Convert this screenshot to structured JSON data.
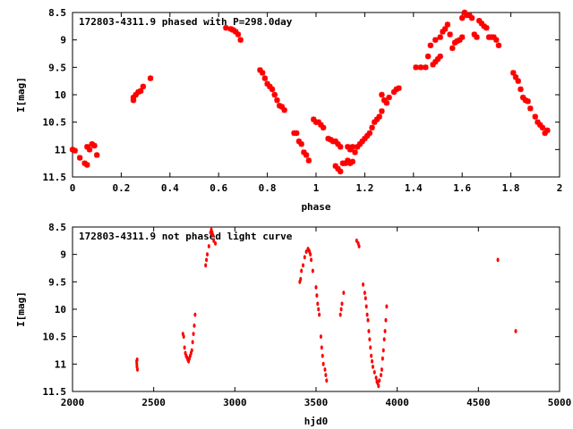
{
  "chart_data": [
    {
      "type": "scatter",
      "title": "172803-4311.9 phased with P=298.0day",
      "xlabel": "phase",
      "ylabel": "I[mag]",
      "xlim": [
        0,
        2
      ],
      "ylim": [
        11.5,
        8.5
      ],
      "xticks": [
        "0",
        "0.2",
        "0.4",
        "0.6",
        "0.8",
        "1",
        "1.2",
        "1.4",
        "1.6",
        "1.8",
        "2"
      ],
      "yticks": [
        "8.5",
        "9",
        "9.5",
        "10",
        "10.5",
        "11",
        "11.5"
      ],
      "marker_color": "#ff0000",
      "marker": "star",
      "series": [
        {
          "points": [
            [
              0.0,
              11.0
            ],
            [
              0.01,
              11.02
            ],
            [
              0.03,
              11.15
            ],
            [
              0.05,
              11.25
            ],
            [
              0.06,
              11.28
            ],
            [
              0.06,
              10.95
            ],
            [
              0.07,
              11.0
            ],
            [
              0.08,
              10.9
            ],
            [
              0.09,
              10.93
            ],
            [
              0.1,
              11.1
            ],
            [
              0.25,
              10.1
            ],
            [
              0.25,
              10.05
            ],
            [
              0.26,
              10.0
            ],
            [
              0.27,
              9.95
            ],
            [
              0.28,
              9.93
            ],
            [
              0.29,
              9.85
            ],
            [
              0.32,
              9.7
            ],
            [
              0.63,
              8.78
            ],
            [
              0.65,
              8.8
            ],
            [
              0.66,
              8.82
            ],
            [
              0.67,
              8.85
            ],
            [
              0.68,
              8.9
            ],
            [
              0.69,
              9.0
            ],
            [
              0.77,
              9.55
            ],
            [
              0.78,
              9.6
            ],
            [
              0.79,
              9.7
            ],
            [
              0.8,
              9.8
            ],
            [
              0.81,
              9.85
            ],
            [
              0.82,
              9.9
            ],
            [
              0.83,
              10.0
            ],
            [
              0.84,
              10.1
            ],
            [
              0.85,
              10.2
            ],
            [
              0.86,
              10.22
            ],
            [
              0.87,
              10.28
            ],
            [
              0.91,
              10.7
            ],
            [
              0.92,
              10.7
            ],
            [
              0.93,
              10.85
            ],
            [
              0.94,
              10.9
            ],
            [
              0.95,
              11.05
            ],
            [
              0.96,
              11.1
            ],
            [
              0.97,
              11.2
            ],
            [
              0.99,
              10.45
            ],
            [
              1.0,
              10.5
            ],
            [
              1.01,
              10.5
            ],
            [
              1.02,
              10.55
            ],
            [
              1.03,
              10.6
            ],
            [
              1.05,
              10.8
            ],
            [
              1.06,
              10.82
            ],
            [
              1.07,
              10.85
            ],
            [
              1.08,
              10.85
            ],
            [
              1.09,
              10.9
            ],
            [
              1.1,
              10.95
            ],
            [
              1.08,
              11.3
            ],
            [
              1.09,
              11.35
            ],
            [
              1.1,
              11.4
            ],
            [
              1.11,
              11.25
            ],
            [
              1.12,
              11.25
            ],
            [
              1.13,
              11.2
            ],
            [
              1.14,
              11.25
            ],
            [
              1.15,
              11.22
            ],
            [
              1.13,
              10.95
            ],
            [
              1.14,
              11.0
            ],
            [
              1.15,
              10.95
            ],
            [
              1.16,
              11.05
            ],
            [
              1.17,
              10.95
            ],
            [
              1.18,
              10.9
            ],
            [
              1.19,
              10.85
            ],
            [
              1.2,
              10.8
            ],
            [
              1.21,
              10.75
            ],
            [
              1.22,
              10.7
            ],
            [
              1.23,
              10.6
            ],
            [
              1.24,
              10.5
            ],
            [
              1.25,
              10.45
            ],
            [
              1.26,
              10.4
            ],
            [
              1.27,
              10.3
            ],
            [
              1.27,
              10.0
            ],
            [
              1.28,
              10.1
            ],
            [
              1.29,
              10.15
            ],
            [
              1.3,
              10.05
            ],
            [
              1.32,
              9.95
            ],
            [
              1.33,
              9.9
            ],
            [
              1.34,
              9.88
            ],
            [
              1.41,
              9.5
            ],
            [
              1.43,
              9.5
            ],
            [
              1.45,
              9.5
            ],
            [
              1.46,
              9.3
            ],
            [
              1.47,
              9.1
            ],
            [
              1.48,
              9.45
            ],
            [
              1.49,
              9.4
            ],
            [
              1.5,
              9.35
            ],
            [
              1.51,
              9.3
            ],
            [
              1.49,
              9.0
            ],
            [
              1.51,
              8.95
            ],
            [
              1.52,
              8.85
            ],
            [
              1.53,
              8.8
            ],
            [
              1.54,
              8.72
            ],
            [
              1.55,
              8.9
            ],
            [
              1.56,
              9.15
            ],
            [
              1.57,
              9.05
            ],
            [
              1.58,
              9.02
            ],
            [
              1.59,
              9.0
            ],
            [
              1.6,
              8.95
            ],
            [
              1.6,
              8.6
            ],
            [
              1.61,
              8.5
            ],
            [
              1.62,
              8.55
            ],
            [
              1.63,
              8.55
            ],
            [
              1.64,
              8.6
            ],
            [
              1.65,
              8.9
            ],
            [
              1.66,
              8.95
            ],
            [
              1.67,
              8.65
            ],
            [
              1.68,
              8.7
            ],
            [
              1.69,
              8.75
            ],
            [
              1.7,
              8.78
            ],
            [
              1.71,
              8.95
            ],
            [
              1.72,
              8.95
            ],
            [
              1.73,
              8.95
            ],
            [
              1.74,
              9.0
            ],
            [
              1.75,
              9.1
            ],
            [
              1.81,
              9.6
            ],
            [
              1.82,
              9.68
            ],
            [
              1.83,
              9.75
            ],
            [
              1.84,
              9.9
            ],
            [
              1.85,
              10.05
            ],
            [
              1.86,
              10.1
            ],
            [
              1.87,
              10.12
            ],
            [
              1.88,
              10.25
            ],
            [
              1.9,
              10.4
            ],
            [
              1.91,
              10.5
            ],
            [
              1.92,
              10.55
            ],
            [
              1.93,
              10.6
            ],
            [
              1.94,
              10.7
            ],
            [
              1.95,
              10.65
            ]
          ]
        }
      ]
    },
    {
      "type": "scatter",
      "title": "172803-4311.9 not phased light curve",
      "xlabel": "hjd0",
      "ylabel": "I[mag]",
      "xlim": [
        2000,
        5000
      ],
      "ylim": [
        11.5,
        8.5
      ],
      "xticks": [
        "2000",
        "2500",
        "3000",
        "3500",
        "4000",
        "4500",
        "5000"
      ],
      "yticks": [
        "8.5",
        "9",
        "9.5",
        "10",
        "10.5",
        "11",
        "11.5"
      ],
      "marker_color": "#ff0000",
      "marker": "dot",
      "series": [
        {
          "points": [
            [
              2395,
              10.95
            ],
            [
              2396,
              11.0
            ],
            [
              2397,
              11.05
            ],
            [
              2398,
              10.92
            ],
            [
              2400,
              11.1
            ],
            [
              2680,
              10.45
            ],
            [
              2685,
              10.5
            ],
            [
              2690,
              10.7
            ],
            [
              2695,
              10.8
            ],
            [
              2700,
              10.85
            ],
            [
              2705,
              10.88
            ],
            [
              2710,
              10.92
            ],
            [
              2715,
              10.95
            ],
            [
              2720,
              10.9
            ],
            [
              2725,
              10.85
            ],
            [
              2730,
              10.8
            ],
            [
              2735,
              10.75
            ],
            [
              2740,
              10.6
            ],
            [
              2745,
              10.45
            ],
            [
              2750,
              10.3
            ],
            [
              2755,
              10.1
            ],
            [
              2820,
              9.2
            ],
            [
              2825,
              9.1
            ],
            [
              2830,
              9.0
            ],
            [
              2840,
              8.85
            ],
            [
              2850,
              8.6
            ],
            [
              2855,
              8.55
            ],
            [
              2860,
              8.6
            ],
            [
              2865,
              8.65
            ],
            [
              2870,
              8.75
            ],
            [
              2880,
              8.8
            ],
            [
              3400,
              9.5
            ],
            [
              3405,
              9.45
            ],
            [
              3410,
              9.3
            ],
            [
              3420,
              9.2
            ],
            [
              3430,
              9.05
            ],
            [
              3440,
              8.95
            ],
            [
              3450,
              8.9
            ],
            [
              3455,
              8.92
            ],
            [
              3460,
              8.95
            ],
            [
              3465,
              9.0
            ],
            [
              3470,
              9.1
            ],
            [
              3480,
              9.3
            ],
            [
              3500,
              9.6
            ],
            [
              3505,
              9.75
            ],
            [
              3510,
              9.9
            ],
            [
              3515,
              10.0
            ],
            [
              3520,
              10.1
            ],
            [
              3530,
              10.5
            ],
            [
              3535,
              10.7
            ],
            [
              3540,
              10.85
            ],
            [
              3545,
              11.0
            ],
            [
              3555,
              11.1
            ],
            [
              3560,
              11.2
            ],
            [
              3565,
              11.3
            ],
            [
              3650,
              10.1
            ],
            [
              3655,
              10.0
            ],
            [
              3660,
              9.9
            ],
            [
              3670,
              9.7
            ],
            [
              3750,
              8.75
            ],
            [
              3760,
              8.8
            ],
            [
              3765,
              8.85
            ],
            [
              3790,
              9.55
            ],
            [
              3800,
              9.7
            ],
            [
              3805,
              9.8
            ],
            [
              3810,
              9.95
            ],
            [
              3815,
              10.1
            ],
            [
              3820,
              10.2
            ],
            [
              3825,
              10.4
            ],
            [
              3830,
              10.55
            ],
            [
              3835,
              10.7
            ],
            [
              3840,
              10.85
            ],
            [
              3845,
              10.95
            ],
            [
              3850,
              11.05
            ],
            [
              3860,
              11.15
            ],
            [
              3870,
              11.25
            ],
            [
              3875,
              11.32
            ],
            [
              3880,
              11.35
            ],
            [
              3885,
              11.4
            ],
            [
              3890,
              11.3
            ],
            [
              3900,
              11.2
            ],
            [
              3905,
              11.1
            ],
            [
              3910,
              10.9
            ],
            [
              3915,
              10.75
            ],
            [
              3920,
              10.55
            ],
            [
              3925,
              10.4
            ],
            [
              3930,
              10.2
            ],
            [
              3935,
              9.95
            ],
            [
              4620,
              9.1
            ],
            [
              4730,
              10.4
            ]
          ]
        }
      ]
    }
  ]
}
